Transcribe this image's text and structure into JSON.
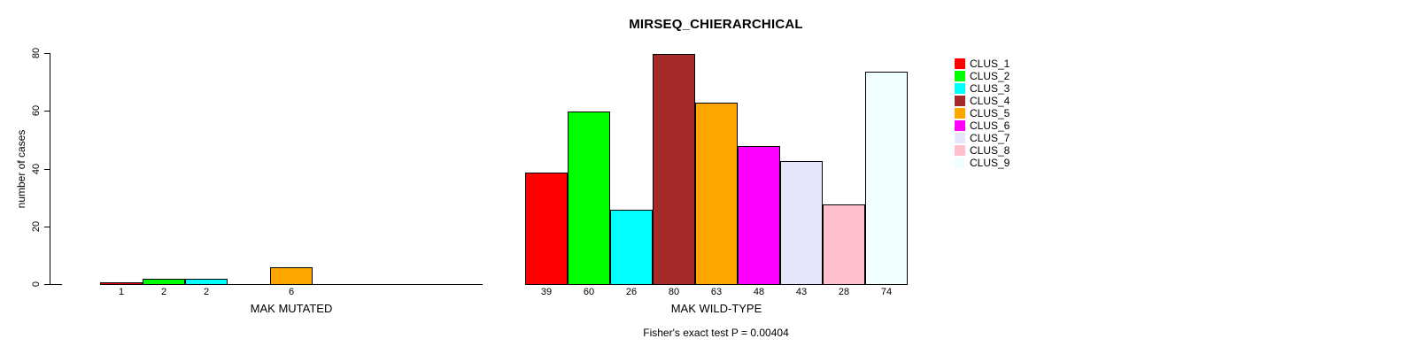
{
  "title": "MIRSEQ_CHIERARCHICAL",
  "caption": "Fisher's exact test P = 0.00404",
  "chart_data": {
    "type": "bar",
    "title": "MIRSEQ_CHIERARCHICAL",
    "xlabel": "",
    "ylabel": "number of cases",
    "ylim": [
      0,
      80
    ],
    "yticks": [
      0,
      20,
      40,
      60,
      80
    ],
    "grid": false,
    "legend_position": "right",
    "categories": [
      "CLUS_1",
      "CLUS_2",
      "CLUS_3",
      "CLUS_4",
      "CLUS_5",
      "CLUS_6",
      "CLUS_7",
      "CLUS_8",
      "CLUS_9"
    ],
    "colors": [
      "#ff0000",
      "#00ff00",
      "#00ffff",
      "#a52a2a",
      "#ffa500",
      "#ff00ff",
      "#e6e6fa",
      "#ffc0cb",
      "#f0ffff"
    ],
    "series": [
      {
        "name": "MAK MUTATED",
        "values": [
          1,
          2,
          2,
          0,
          6,
          0,
          0,
          0,
          0
        ]
      },
      {
        "name": "MAK WILD-TYPE",
        "values": [
          39,
          60,
          26,
          80,
          63,
          48,
          43,
          28,
          74
        ]
      }
    ],
    "annotation": "Fisher's exact test P = 0.00404"
  }
}
